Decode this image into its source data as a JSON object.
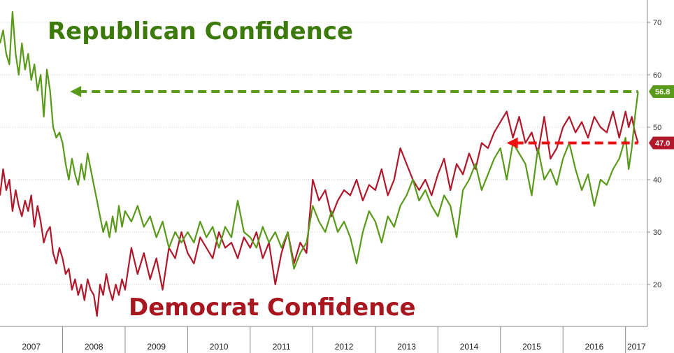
{
  "colors": {
    "republican": "#5a9a1a",
    "democrat": "#b0182c",
    "republican_title": "#3d7a0c",
    "democrat_title": "#a8161f",
    "grid": "#cfcfcf",
    "axis": "#8a8a8a"
  },
  "annotations": {
    "republican_label": "Republican Confidence",
    "democrat_label": "Democrat Confidence",
    "republican_last": "56.8",
    "democrat_last": "47.0"
  },
  "chart_data": {
    "type": "line",
    "title": "",
    "xlabel": "",
    "ylabel": "",
    "xlim": [
      2007.0,
      2017.35
    ],
    "ylim": [
      12,
      74
    ],
    "yticks": [
      20,
      30,
      40,
      50,
      60,
      70
    ],
    "ytick_labels": [
      "20",
      "30",
      "40",
      "50",
      "60",
      "70"
    ],
    "year_ticks": [
      2007,
      2008,
      2009,
      2010,
      2011,
      2012,
      2013,
      2014,
      2015,
      2016,
      2017
    ],
    "year_labels": [
      "2007",
      "2008",
      "2009",
      "2010",
      "2011",
      "2012",
      "2013",
      "2014",
      "2015",
      "2016",
      "2017"
    ],
    "gridlines": "horizontal",
    "series": [
      {
        "name": "Republican Confidence",
        "x": [
          2007.0,
          2007.05,
          2007.1,
          2007.15,
          2007.2,
          2007.25,
          2007.3,
          2007.35,
          2007.4,
          2007.45,
          2007.5,
          2007.55,
          2007.6,
          2007.65,
          2007.7,
          2007.75,
          2007.8,
          2007.85,
          2007.9,
          2007.95,
          2008.0,
          2008.05,
          2008.1,
          2008.15,
          2008.2,
          2008.25,
          2008.3,
          2008.35,
          2008.4,
          2008.45,
          2008.5,
          2008.55,
          2008.6,
          2008.65,
          2008.7,
          2008.75,
          2008.8,
          2008.85,
          2008.9,
          2008.95,
          2009.0,
          2009.1,
          2009.2,
          2009.3,
          2009.4,
          2009.5,
          2009.6,
          2009.7,
          2009.8,
          2009.9,
          2010.0,
          2010.1,
          2010.2,
          2010.3,
          2010.4,
          2010.5,
          2010.6,
          2010.7,
          2010.8,
          2010.9,
          2011.0,
          2011.1,
          2011.2,
          2011.3,
          2011.4,
          2011.5,
          2011.6,
          2011.7,
          2011.8,
          2011.9,
          2012.0,
          2012.1,
          2012.2,
          2012.3,
          2012.4,
          2012.5,
          2012.6,
          2012.7,
          2012.8,
          2012.9,
          2013.0,
          2013.1,
          2013.2,
          2013.3,
          2013.4,
          2013.5,
          2013.6,
          2013.7,
          2013.8,
          2013.9,
          2014.0,
          2014.1,
          2014.2,
          2014.3,
          2014.4,
          2014.5,
          2014.6,
          2014.7,
          2014.8,
          2014.9,
          2015.0,
          2015.1,
          2015.2,
          2015.3,
          2015.4,
          2015.5,
          2015.6,
          2015.7,
          2015.8,
          2015.9,
          2016.0,
          2016.1,
          2016.2,
          2016.3,
          2016.4,
          2016.5,
          2016.6,
          2016.7,
          2016.8,
          2016.9,
          2017.0,
          2017.05,
          2017.1,
          2017.15,
          2017.2
        ],
        "values": [
          66.0,
          68.5,
          64.0,
          62.0,
          72.0,
          64.0,
          60.0,
          66.0,
          61.0,
          64.0,
          59.0,
          62.0,
          57.0,
          60.0,
          52.0,
          61.0,
          57.0,
          50.0,
          48.0,
          49.0,
          47.0,
          43.0,
          40.0,
          44.0,
          41.0,
          39.0,
          43.0,
          40.0,
          45.0,
          42.0,
          39.0,
          36.0,
          33.0,
          30.0,
          32.0,
          29.0,
          33.0,
          30.0,
          35.0,
          31.0,
          34.0,
          32.0,
          35.0,
          31.0,
          33.0,
          29.0,
          32.0,
          27.0,
          30.0,
          28.0,
          30.0,
          28.0,
          32.0,
          29.0,
          31.0,
          27.0,
          31.0,
          29.0,
          36.0,
          30.0,
          29.0,
          27.0,
          31.0,
          28.0,
          30.0,
          27.0,
          30.0,
          23.0,
          26.0,
          28.0,
          35.0,
          32.0,
          30.0,
          34.0,
          30.0,
          32.0,
          29.0,
          24.0,
          30.0,
          34.0,
          32.0,
          28.0,
          33.0,
          31.0,
          35.0,
          37.0,
          40.0,
          36.0,
          38.0,
          35.0,
          33.0,
          37.0,
          35.0,
          29.0,
          38.0,
          40.0,
          43.0,
          38.0,
          41.0,
          44.0,
          46.0,
          40.0,
          47.0,
          45.0,
          43.0,
          37.0,
          46.0,
          40.0,
          42.0,
          39.0,
          44.0,
          47.0,
          42.0,
          38.0,
          41.0,
          35.0,
          40.0,
          39.0,
          42.0,
          44.0,
          48.0,
          42.0,
          46.0,
          52.0,
          56.8
        ]
      },
      {
        "name": "Democrat Confidence",
        "x": [
          2007.0,
          2007.05,
          2007.1,
          2007.15,
          2007.2,
          2007.25,
          2007.3,
          2007.35,
          2007.4,
          2007.45,
          2007.5,
          2007.55,
          2007.6,
          2007.65,
          2007.7,
          2007.75,
          2007.8,
          2007.85,
          2007.9,
          2007.95,
          2008.0,
          2008.05,
          2008.1,
          2008.15,
          2008.2,
          2008.25,
          2008.3,
          2008.35,
          2008.4,
          2008.45,
          2008.5,
          2008.55,
          2008.6,
          2008.65,
          2008.7,
          2008.75,
          2008.8,
          2008.85,
          2008.9,
          2008.95,
          2009.0,
          2009.1,
          2009.2,
          2009.3,
          2009.4,
          2009.5,
          2009.6,
          2009.7,
          2009.8,
          2009.9,
          2010.0,
          2010.1,
          2010.2,
          2010.3,
          2010.4,
          2010.5,
          2010.6,
          2010.7,
          2010.8,
          2010.9,
          2011.0,
          2011.1,
          2011.2,
          2011.3,
          2011.4,
          2011.5,
          2011.6,
          2011.7,
          2011.8,
          2011.9,
          2012.0,
          2012.1,
          2012.2,
          2012.3,
          2012.4,
          2012.5,
          2012.6,
          2012.7,
          2012.8,
          2012.9,
          2013.0,
          2013.1,
          2013.2,
          2013.3,
          2013.4,
          2013.5,
          2013.6,
          2013.7,
          2013.8,
          2013.9,
          2014.0,
          2014.1,
          2014.2,
          2014.3,
          2014.4,
          2014.5,
          2014.6,
          2014.7,
          2014.8,
          2014.9,
          2015.0,
          2015.1,
          2015.2,
          2015.3,
          2015.4,
          2015.5,
          2015.6,
          2015.7,
          2015.8,
          2015.9,
          2016.0,
          2016.1,
          2016.2,
          2016.3,
          2016.4,
          2016.5,
          2016.6,
          2016.7,
          2016.8,
          2016.9,
          2017.0,
          2017.05,
          2017.1,
          2017.15,
          2017.2
        ],
        "values": [
          37.0,
          42.0,
          38.0,
          40.0,
          34.0,
          38.0,
          35.0,
          33.0,
          36.0,
          34.0,
          37.0,
          31.0,
          35.0,
          32.0,
          28.0,
          30.0,
          31.0,
          26.0,
          24.0,
          27.0,
          25.0,
          22.0,
          23.0,
          19.0,
          21.0,
          18.0,
          20.0,
          17.0,
          21.0,
          19.0,
          18.0,
          14.0,
          20.0,
          18.0,
          22.0,
          19.0,
          17.0,
          20.0,
          18.0,
          21.0,
          19.0,
          27.0,
          22.0,
          26.0,
          21.0,
          25.0,
          19.0,
          27.0,
          25.0,
          30.0,
          26.0,
          24.0,
          29.0,
          27.0,
          25.0,
          30.0,
          27.0,
          28.0,
          25.0,
          29.0,
          27.0,
          30.0,
          25.0,
          28.0,
          20.0,
          26.0,
          30.0,
          24.0,
          28.0,
          26.0,
          40.0,
          36.0,
          38.0,
          33.0,
          36.0,
          38.0,
          37.0,
          40.0,
          36.0,
          39.0,
          38.0,
          42.0,
          37.0,
          40.0,
          46.0,
          43.0,
          40.0,
          38.0,
          40.0,
          37.0,
          41.0,
          44.0,
          38.0,
          43.0,
          41.0,
          45.0,
          42.0,
          47.0,
          46.0,
          49.0,
          51.0,
          53.0,
          48.0,
          52.0,
          47.0,
          49.0,
          45.0,
          52.0,
          44.0,
          46.0,
          50.0,
          52.0,
          49.0,
          51.0,
          48.0,
          52.0,
          50.0,
          49.0,
          53.0,
          48.0,
          53.0,
          50.0,
          52.0,
          49.0,
          47.0
        ]
      }
    ]
  }
}
